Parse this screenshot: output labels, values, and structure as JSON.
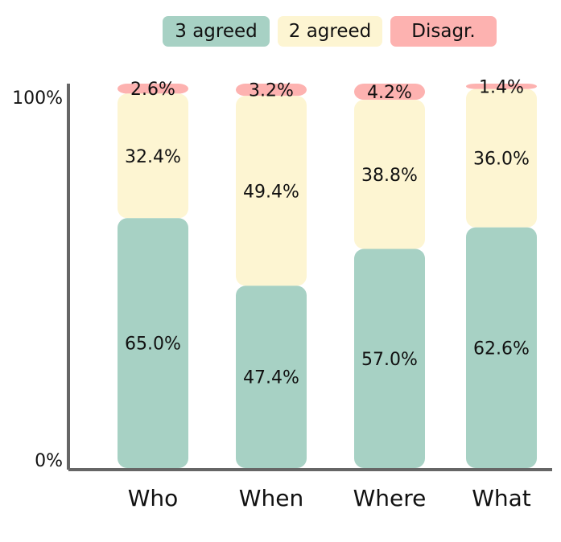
{
  "legend": {
    "agreed3_label": "3 agreed",
    "agreed2_label": "2 agreed",
    "disagr_label": "Disagr."
  },
  "axis": {
    "y_max_label": "100%",
    "y_min_label": "0%"
  },
  "chart_data": {
    "type": "bar",
    "stacked": true,
    "categories": [
      "Who",
      "When",
      "Where",
      "What"
    ],
    "ylim": [
      0,
      100
    ],
    "title": "",
    "xlabel": "",
    "ylabel": "",
    "legend_placement": "top",
    "grid": false,
    "series": [
      {
        "name": "3 agreed",
        "color": "#A7D1C4",
        "values": [
          65.0,
          47.4,
          57.0,
          62.6
        ],
        "labels": [
          "65.0%",
          "47.4%",
          "57.0%",
          "62.6%"
        ]
      },
      {
        "name": "2 agreed",
        "color": "#FDF5D2",
        "values": [
          32.4,
          49.4,
          38.8,
          36.0
        ],
        "labels": [
          "32.4%",
          "49.4%",
          "38.8%",
          "36.0%"
        ]
      },
      {
        "name": "Disagr.",
        "color": "#FDB2B0",
        "values": [
          2.6,
          3.2,
          4.2,
          1.4
        ],
        "labels": [
          "2.6%",
          "3.2%",
          "4.2%",
          "1.4%"
        ]
      }
    ]
  }
}
